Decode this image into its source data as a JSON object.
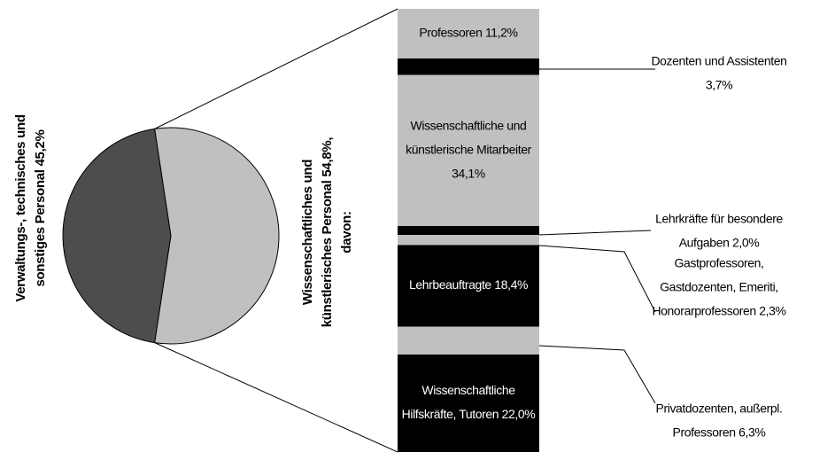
{
  "chart_data": [
    {
      "type": "pie",
      "categories": [
        [
          "Verwaltungs-, technisches und",
          "sonstiges Personal 45,2%"
        ],
        [
          "Wissenschaftliches und",
          "künstlerisches Personal 54,8%,",
          "davon:"
        ]
      ],
      "values": [
        45.2,
        54.8
      ],
      "colors": [
        "#4d4d4d",
        "#c0c0c0"
      ]
    },
    {
      "type": "bar",
      "stacked": true,
      "labels": [
        [
          "Professoren 11,2%"
        ],
        [
          "Dozenten und Assistenten",
          "3,7%"
        ],
        [
          "Wissenschaftliche und",
          "künstlerische Mitarbeiter",
          "34,1%"
        ],
        [
          "Lehrkräfte für besondere",
          "Aufgaben 2,0%"
        ],
        [
          "Gastprofessoren,",
          "Gastdozenten, Emeriti,",
          "Honorarprofessoren 2,3%"
        ],
        [
          "Lehrbeauftragte 18,4%"
        ],
        [
          "Privatdozenten, außerpl.",
          "Professoren 6,3%"
        ],
        [
          "Wissenschaftliche",
          "Hilfskräfte, Tutoren 22,0%"
        ]
      ],
      "values": [
        11.2,
        3.7,
        34.1,
        2.0,
        2.3,
        18.4,
        6.3,
        22.0
      ],
      "colors": [
        "#c0c0c0",
        "#000000",
        "#c0c0c0",
        "#000000",
        "#c0c0c0",
        "#000000",
        "#c0c0c0",
        "#000000"
      ]
    }
  ]
}
